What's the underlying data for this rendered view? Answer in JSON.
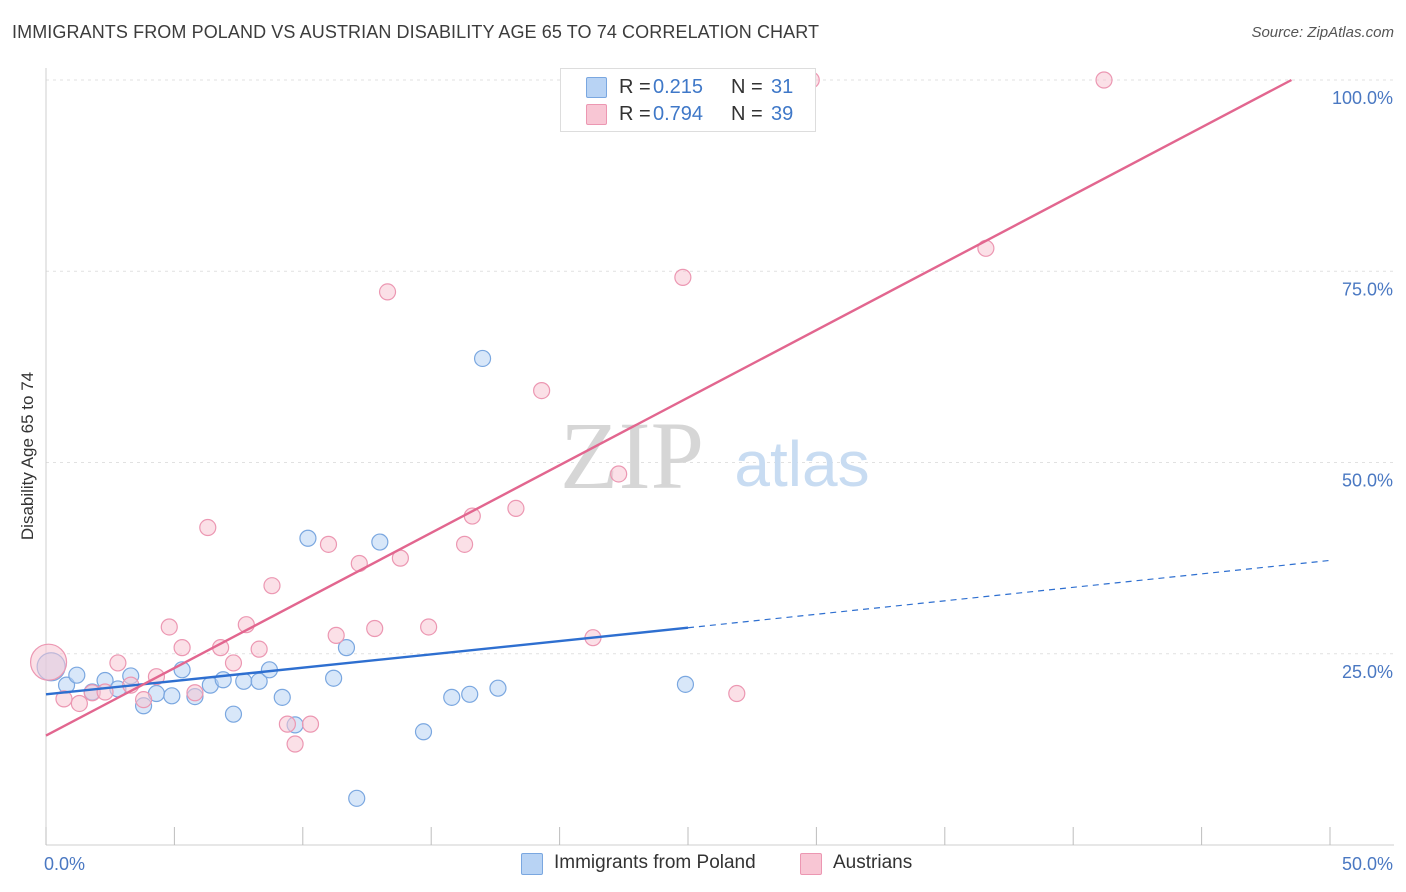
{
  "header": {
    "title": "IMMIGRANTS FROM POLAND VS AUSTRIAN DISABILITY AGE 65 TO 74 CORRELATION CHART",
    "source": "Source: ZipAtlas.com"
  },
  "watermark": {
    "zip": "ZIP",
    "atlas": "atlas"
  },
  "legend": {
    "r_label": "R =",
    "n_label": "N =",
    "rows": [
      {
        "r": "0.215",
        "n": "31"
      },
      {
        "r": "0.794",
        "n": "39"
      }
    ]
  },
  "colors": {
    "poland_fill": "#b8d3f4",
    "poland_stroke": "#7aa7e0",
    "poland_line": "#2e6fd0",
    "austrians_fill": "#f8c6d4",
    "austrians_stroke": "#ec97b2",
    "austrians_line": "#e2668f",
    "tick_text": "#4a78c2",
    "grid": "#e1e1e1"
  },
  "chart_data": {
    "type": "scatter",
    "title": "IMMIGRANTS FROM POLAND VS AUSTRIAN DISABILITY AGE 65 TO 74 CORRELATION CHART",
    "xlabel": "",
    "ylabel": "Disability Age 65 to 74",
    "xlim": [
      0,
      50
    ],
    "ylim": [
      0,
      100
    ],
    "x_tick_labels": [
      "0.0%",
      "50.0%"
    ],
    "y_ticks": [
      25,
      50,
      75,
      100
    ],
    "y_tick_labels": [
      "25.0%",
      "50.0%",
      "75.0%",
      "100.0%"
    ],
    "grid": true,
    "legend_position": "bottom",
    "series": [
      {
        "name": "Immigrants from Poland",
        "r": 0.215,
        "n": 31,
        "trend": {
          "x": [
            0,
            25
          ],
          "y": [
            19.7,
            28.4
          ],
          "dashed_to": [
            50,
            37.2
          ]
        },
        "points": [
          [
            0.2,
            23.3
          ],
          [
            0.8,
            20.9
          ],
          [
            1.2,
            22.2
          ],
          [
            1.8,
            20.0
          ],
          [
            2.3,
            21.5
          ],
          [
            2.8,
            20.4
          ],
          [
            3.3,
            22.1
          ],
          [
            3.8,
            18.2
          ],
          [
            4.3,
            19.8
          ],
          [
            4.9,
            19.5
          ],
          [
            5.3,
            22.9
          ],
          [
            5.8,
            19.4
          ],
          [
            6.4,
            20.9
          ],
          [
            6.9,
            21.6
          ],
          [
            7.3,
            17.1
          ],
          [
            7.7,
            21.4
          ],
          [
            8.3,
            21.4
          ],
          [
            8.7,
            22.9
          ],
          [
            9.2,
            19.3
          ],
          [
            9.7,
            15.7
          ],
          [
            10.2,
            40.1
          ],
          [
            11.2,
            21.8
          ],
          [
            11.7,
            25.8
          ],
          [
            12.1,
            6.1
          ],
          [
            13.0,
            39.6
          ],
          [
            14.7,
            14.8
          ],
          [
            15.8,
            19.3
          ],
          [
            16.5,
            19.7
          ],
          [
            17.0,
            63.6
          ],
          [
            17.6,
            20.5
          ],
          [
            24.9,
            21.0
          ]
        ]
      },
      {
        "name": "Austrians",
        "r": 0.794,
        "n": 39,
        "trend": {
          "x": [
            0,
            48.5
          ],
          "y": [
            14.3,
            100
          ]
        },
        "points": [
          [
            0.1,
            23.9
          ],
          [
            0.7,
            19.1
          ],
          [
            1.3,
            18.5
          ],
          [
            1.8,
            19.9
          ],
          [
            2.3,
            20.0
          ],
          [
            2.8,
            23.8
          ],
          [
            3.3,
            20.9
          ],
          [
            3.8,
            19.0
          ],
          [
            4.3,
            22.0
          ],
          [
            4.8,
            28.5
          ],
          [
            5.3,
            25.8
          ],
          [
            5.8,
            19.9
          ],
          [
            6.3,
            41.5
          ],
          [
            6.8,
            25.8
          ],
          [
            7.3,
            23.8
          ],
          [
            7.8,
            28.8
          ],
          [
            8.3,
            25.6
          ],
          [
            8.8,
            33.9
          ],
          [
            9.4,
            15.8
          ],
          [
            9.7,
            13.2
          ],
          [
            10.3,
            15.8
          ],
          [
            11.0,
            39.3
          ],
          [
            11.3,
            27.4
          ],
          [
            12.2,
            36.8
          ],
          [
            12.8,
            28.3
          ],
          [
            13.3,
            72.3
          ],
          [
            13.8,
            37.5
          ],
          [
            14.9,
            28.5
          ],
          [
            16.3,
            39.3
          ],
          [
            16.6,
            43.0
          ],
          [
            18.3,
            44.0
          ],
          [
            19.3,
            59.4
          ],
          [
            21.3,
            27.1
          ],
          [
            22.3,
            48.5
          ],
          [
            24.8,
            74.2
          ],
          [
            26.9,
            19.8
          ],
          [
            29.8,
            100
          ],
          [
            36.6,
            78.0
          ],
          [
            41.2,
            100
          ]
        ]
      }
    ]
  },
  "bottom_legend": {
    "items": [
      "Immigrants from Poland",
      "Austrians"
    ]
  }
}
